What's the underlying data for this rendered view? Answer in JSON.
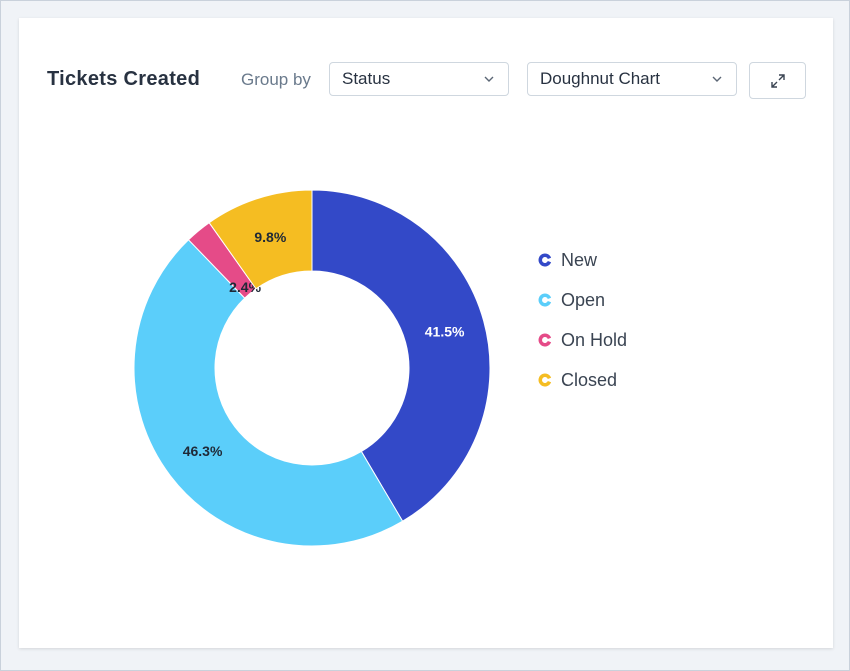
{
  "header": {
    "title": "Tickets Created",
    "group_by_label": "Group by",
    "group_by_value": "Status",
    "chart_type_value": "Doughnut Chart"
  },
  "icons": {
    "select_chevron": "chevron-down-icon",
    "expand": "expand-icon",
    "legend_marker": "donut-ring-icon"
  },
  "chart_data": {
    "type": "pie",
    "variant": "doughnut",
    "categories": [
      "New",
      "Open",
      "On Hold",
      "Closed"
    ],
    "values": [
      41.5,
      46.3,
      2.4,
      9.8
    ],
    "labels": [
      "41.5%",
      "46.3%",
      "2.4%",
      "9.8%"
    ],
    "colors": [
      "#3349c8",
      "#5bcefa",
      "#e54b88",
      "#f5bd22"
    ],
    "label_colors": [
      "#ffffff",
      "#1f2937",
      "#1f2937",
      "#1f2937"
    ],
    "legend_position": "right",
    "unit": "%"
  }
}
